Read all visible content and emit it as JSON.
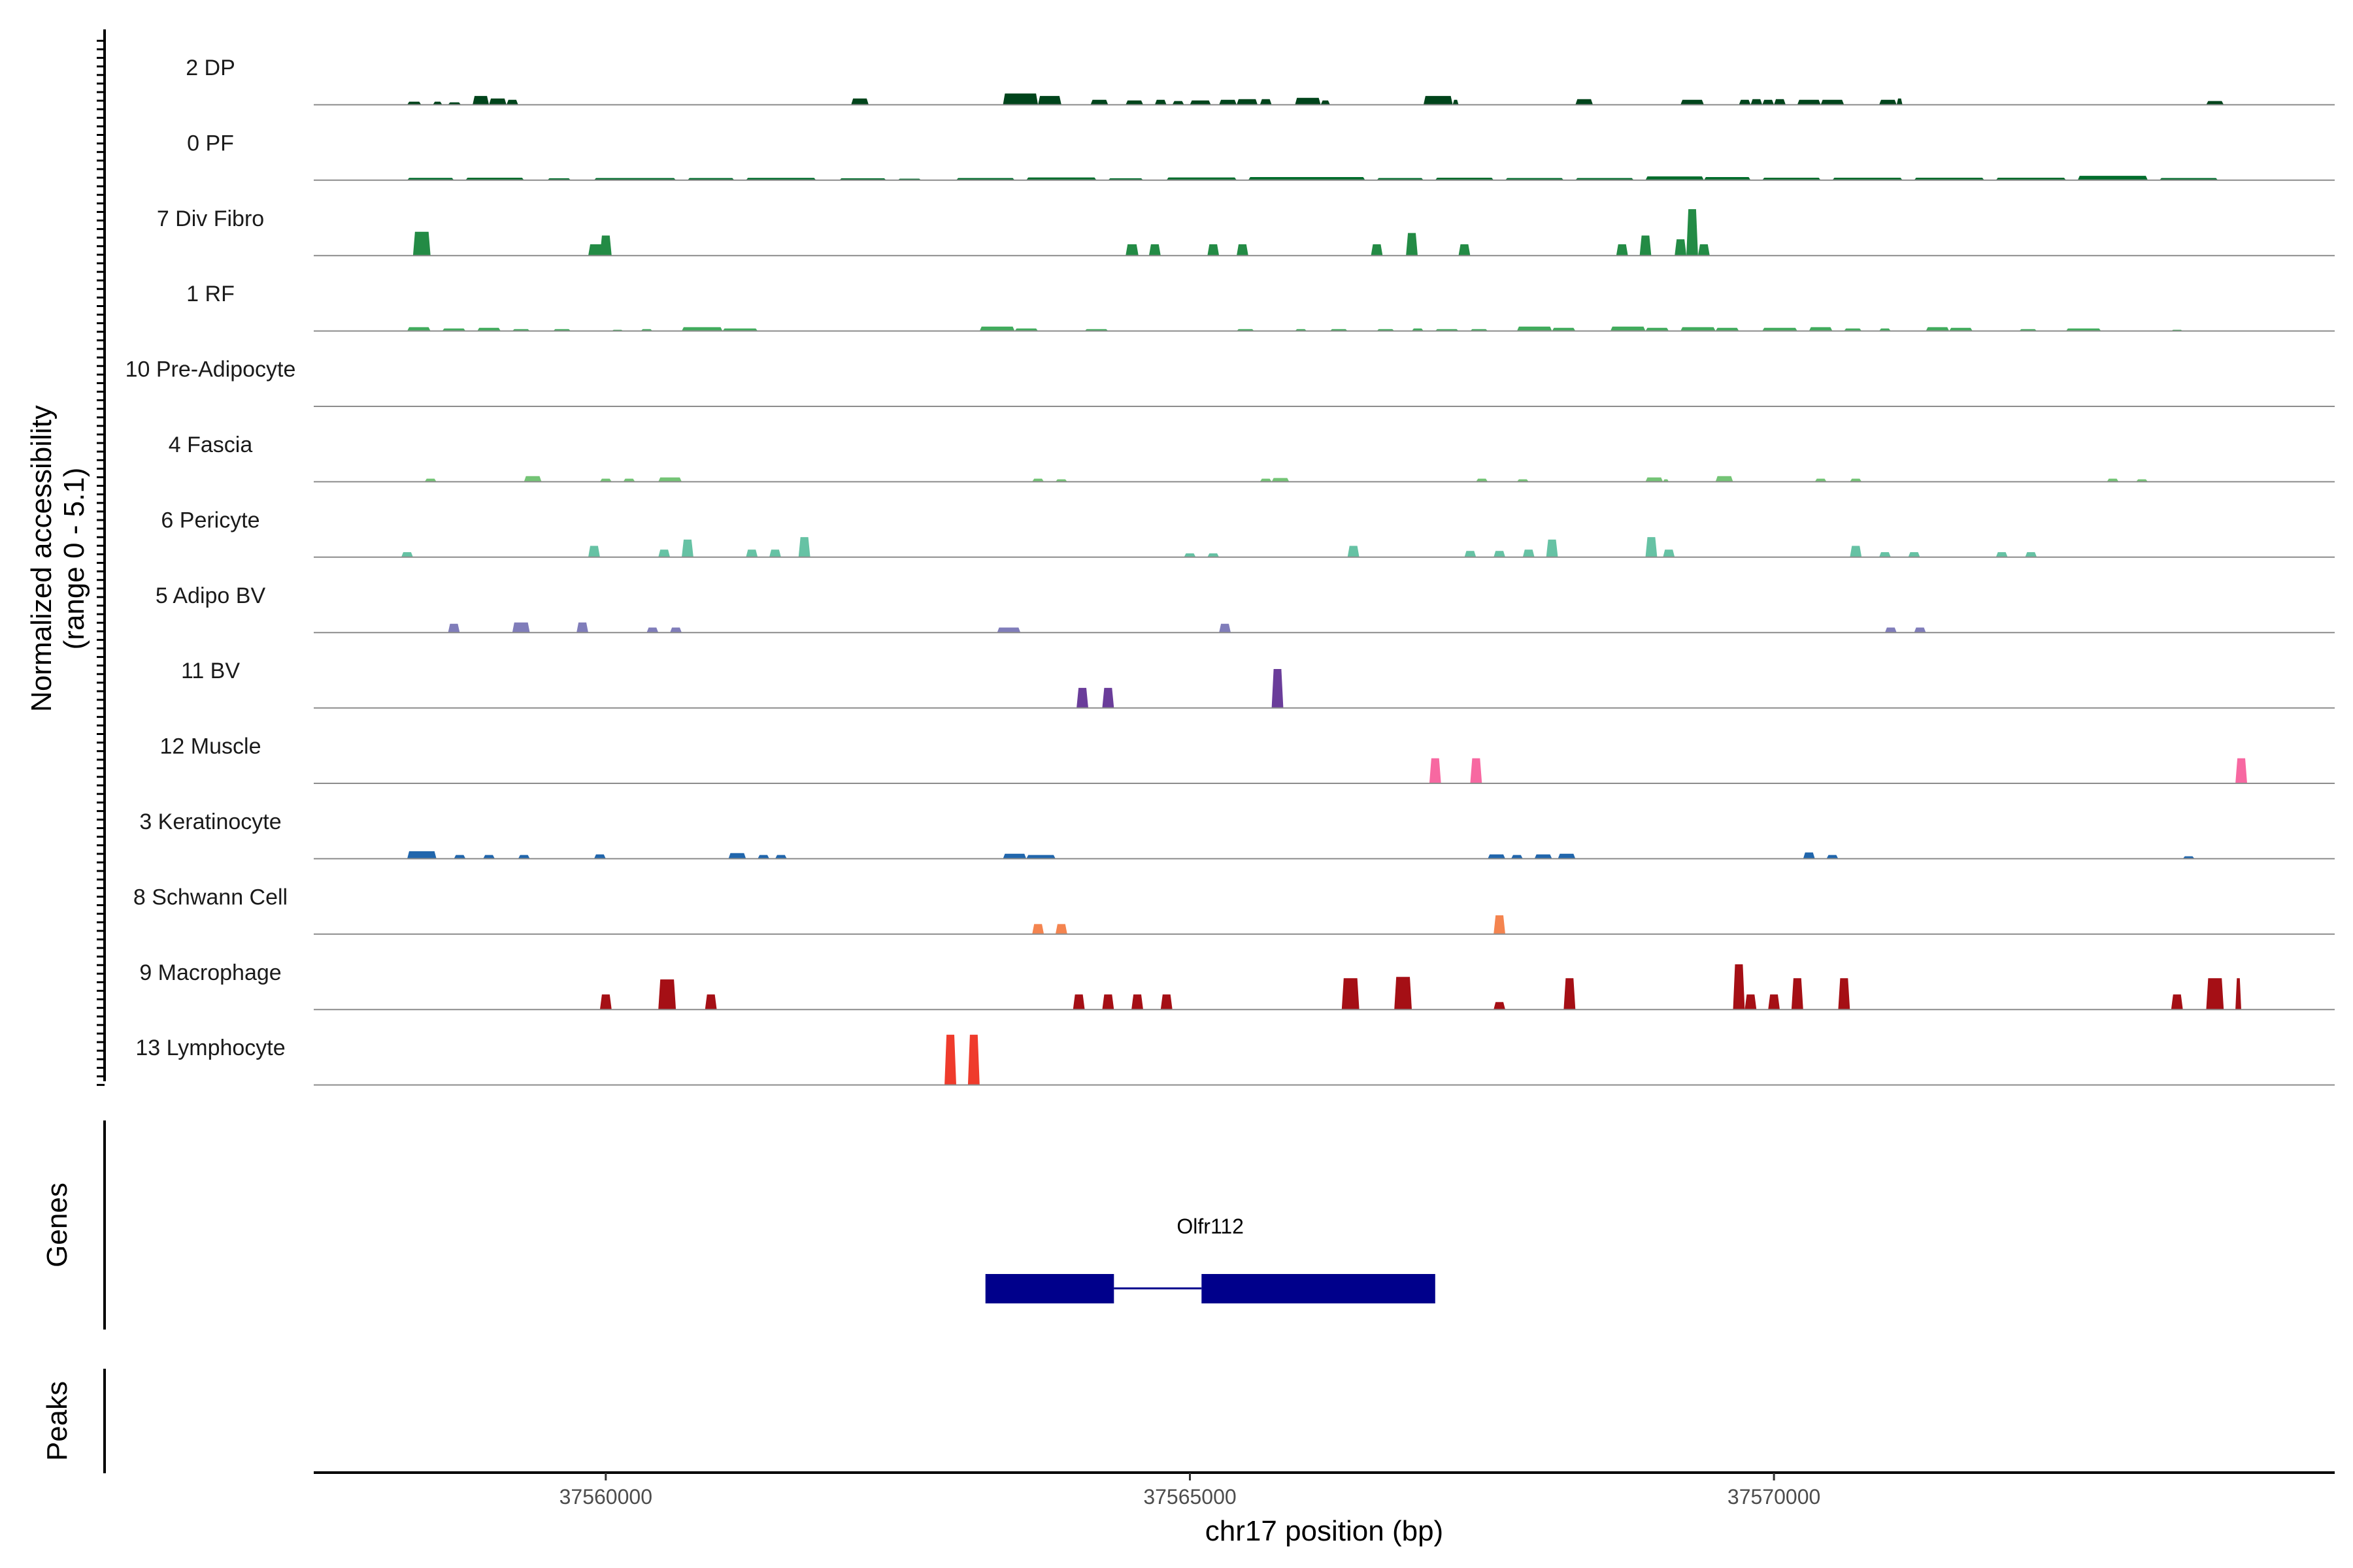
{
  "chart_data": {
    "type": "coverage",
    "region_start": 37557500,
    "region_end": 37574800,
    "y_axis_title_line1": "Normalized accessibility",
    "y_axis_title_line2": "(range 0 - 5.1)",
    "y_range": [
      0,
      5.1
    ],
    "x_axis_title": "chr17 position (bp)",
    "x_ticks": [
      {
        "value": 37560000,
        "label": "37560000"
      },
      {
        "value": 37565000,
        "label": "37565000"
      },
      {
        "value": 37570000,
        "label": "37570000"
      }
    ],
    "genes_panel_title": "Genes",
    "peaks_panel_title": "Peaks",
    "gene": {
      "name": "Olfr112",
      "color": "#00008B",
      "exons": [
        [
          37563250,
          37564350
        ],
        [
          37565100,
          37567100
        ]
      ],
      "intron": [
        37564350,
        37565100
      ]
    },
    "tracks": [
      {
        "label": "2 DP",
        "color": "#00441B",
        "peaks": [
          [
            37558300,
            37558420,
            0.25
          ],
          [
            37558520,
            37558600,
            0.25
          ],
          [
            37558650,
            37558760,
            0.2
          ],
          [
            37558860,
            37559000,
            0.7
          ],
          [
            37559000,
            37559150,
            0.5
          ],
          [
            37559150,
            37559250,
            0.4
          ],
          [
            37562100,
            37562250,
            0.5
          ],
          [
            37563400,
            37563700,
            0.9
          ],
          [
            37563700,
            37563900,
            0.7
          ],
          [
            37564150,
            37564300,
            0.4
          ],
          [
            37564450,
            37564600,
            0.35
          ],
          [
            37564700,
            37564800,
            0.4
          ],
          [
            37564850,
            37564950,
            0.3
          ],
          [
            37565000,
            37565180,
            0.35
          ],
          [
            37565250,
            37565400,
            0.4
          ],
          [
            37565400,
            37565580,
            0.45
          ],
          [
            37565600,
            37565700,
            0.45
          ],
          [
            37565900,
            37566120,
            0.55
          ],
          [
            37566120,
            37566200,
            0.35
          ],
          [
            37567000,
            37567250,
            0.7
          ],
          [
            37567250,
            37567300,
            0.4
          ],
          [
            37568300,
            37568450,
            0.45
          ],
          [
            37569200,
            37569400,
            0.4
          ],
          [
            37569700,
            37569800,
            0.4
          ],
          [
            37569800,
            37569900,
            0.45
          ],
          [
            37569900,
            37570000,
            0.4
          ],
          [
            37570000,
            37570100,
            0.45
          ],
          [
            37570200,
            37570400,
            0.4
          ],
          [
            37570400,
            37570600,
            0.4
          ],
          [
            37570900,
            37571050,
            0.4
          ],
          [
            37571050,
            37571100,
            0.5
          ],
          [
            37573700,
            37573850,
            0.3
          ]
        ]
      },
      {
        "label": "0 PF",
        "color": "#006D2C",
        "peaks": [
          [
            37558300,
            37558700,
            0.18
          ],
          [
            37558800,
            37559300,
            0.2
          ],
          [
            37559500,
            37559700,
            0.15
          ],
          [
            37559900,
            37560600,
            0.17
          ],
          [
            37560700,
            37561100,
            0.17
          ],
          [
            37561200,
            37561800,
            0.18
          ],
          [
            37562000,
            37562400,
            0.15
          ],
          [
            37562500,
            37562700,
            0.12
          ],
          [
            37563000,
            37563500,
            0.17
          ],
          [
            37563600,
            37564200,
            0.22
          ],
          [
            37564300,
            37564600,
            0.15
          ],
          [
            37564800,
            37565400,
            0.22
          ],
          [
            37565500,
            37566500,
            0.25
          ],
          [
            37566600,
            37567000,
            0.17
          ],
          [
            37567100,
            37567600,
            0.2
          ],
          [
            37567700,
            37568200,
            0.17
          ],
          [
            37568300,
            37568800,
            0.17
          ],
          [
            37568900,
            37569400,
            0.3
          ],
          [
            37569400,
            37569800,
            0.25
          ],
          [
            37569900,
            37570400,
            0.2
          ],
          [
            37570500,
            37571100,
            0.2
          ],
          [
            37571200,
            37571800,
            0.2
          ],
          [
            37571900,
            37572500,
            0.2
          ],
          [
            37572600,
            37573200,
            0.35
          ],
          [
            37573300,
            37573800,
            0.17
          ]
        ]
      },
      {
        "label": "7 Div Fibro",
        "color": "#238B45",
        "peaks": [
          [
            37558350,
            37558500,
            1.9
          ],
          [
            37559850,
            37560000,
            0.9
          ],
          [
            37559950,
            37560050,
            1.6
          ],
          [
            37564450,
            37564560,
            0.9
          ],
          [
            37564650,
            37564750,
            0.9
          ],
          [
            37565150,
            37565250,
            0.9
          ],
          [
            37565400,
            37565500,
            0.9
          ],
          [
            37566550,
            37566650,
            0.9
          ],
          [
            37566850,
            37566950,
            1.8
          ],
          [
            37567300,
            37567400,
            0.9
          ],
          [
            37568650,
            37568750,
            0.9
          ],
          [
            37568850,
            37568950,
            1.6
          ],
          [
            37569150,
            37569250,
            1.3
          ],
          [
            37569250,
            37569350,
            3.7
          ],
          [
            37569350,
            37569450,
            0.9
          ]
        ]
      },
      {
        "label": "1 RF",
        "color": "#41AB5D",
        "peaks": [
          [
            37558300,
            37558500,
            0.3
          ],
          [
            37558600,
            37558800,
            0.2
          ],
          [
            37558900,
            37559100,
            0.25
          ],
          [
            37559200,
            37559350,
            0.15
          ],
          [
            37559550,
            37559700,
            0.15
          ],
          [
            37560050,
            37560150,
            0.1
          ],
          [
            37560300,
            37560400,
            0.15
          ],
          [
            37560650,
            37561000,
            0.3
          ],
          [
            37561000,
            37561300,
            0.2
          ],
          [
            37563200,
            37563500,
            0.35
          ],
          [
            37563500,
            37563700,
            0.2
          ],
          [
            37564100,
            37564300,
            0.15
          ],
          [
            37565400,
            37565550,
            0.15
          ],
          [
            37565900,
            37566000,
            0.15
          ],
          [
            37566200,
            37566350,
            0.15
          ],
          [
            37566600,
            37566750,
            0.15
          ],
          [
            37566900,
            37567000,
            0.2
          ],
          [
            37567100,
            37567300,
            0.15
          ],
          [
            37567400,
            37567550,
            0.15
          ],
          [
            37567800,
            37568100,
            0.35
          ],
          [
            37568100,
            37568300,
            0.25
          ],
          [
            37568600,
            37568900,
            0.35
          ],
          [
            37568900,
            37569100,
            0.25
          ],
          [
            37569200,
            37569500,
            0.3
          ],
          [
            37569500,
            37569700,
            0.25
          ],
          [
            37569900,
            37570200,
            0.25
          ],
          [
            37570300,
            37570500,
            0.3
          ],
          [
            37570600,
            37570750,
            0.2
          ],
          [
            37570900,
            37571000,
            0.2
          ],
          [
            37571300,
            37571500,
            0.3
          ],
          [
            37571500,
            37571700,
            0.25
          ],
          [
            37572100,
            37572250,
            0.15
          ],
          [
            37572500,
            37572800,
            0.2
          ],
          [
            37573400,
            37573500,
            0.1
          ]
        ]
      },
      {
        "label": "10 Pre-Adipocyte",
        "color": "#74C476",
        "peaks": []
      },
      {
        "label": "4 Fascia",
        "color": "#74C476",
        "peaks": [
          [
            37558450,
            37558550,
            0.25
          ],
          [
            37559300,
            37559450,
            0.45
          ],
          [
            37559950,
            37560050,
            0.25
          ],
          [
            37560150,
            37560250,
            0.25
          ],
          [
            37560450,
            37560650,
            0.35
          ],
          [
            37563650,
            37563750,
            0.25
          ],
          [
            37563850,
            37563950,
            0.2
          ],
          [
            37565600,
            37565700,
            0.25
          ],
          [
            37565700,
            37565850,
            0.3
          ],
          [
            37567450,
            37567550,
            0.25
          ],
          [
            37567800,
            37567900,
            0.2
          ],
          [
            37568900,
            37569050,
            0.35
          ],
          [
            37569050,
            37569100,
            0.2
          ],
          [
            37569500,
            37569650,
            0.45
          ],
          [
            37570350,
            37570450,
            0.25
          ],
          [
            37570650,
            37570750,
            0.25
          ],
          [
            37572850,
            37572950,
            0.25
          ],
          [
            37573100,
            37573200,
            0.2
          ]
        ]
      },
      {
        "label": "6 Pericyte",
        "color": "#66C2A4",
        "peaks": [
          [
            37558250,
            37558350,
            0.4
          ],
          [
            37559850,
            37559950,
            0.9
          ],
          [
            37560450,
            37560550,
            0.6
          ],
          [
            37560650,
            37560750,
            1.4
          ],
          [
            37561200,
            37561300,
            0.6
          ],
          [
            37561400,
            37561500,
            0.6
          ],
          [
            37561650,
            37561750,
            1.6
          ],
          [
            37564950,
            37565050,
            0.3
          ],
          [
            37565150,
            37565250,
            0.3
          ],
          [
            37566350,
            37566450,
            0.9
          ],
          [
            37567350,
            37567450,
            0.5
          ],
          [
            37567600,
            37567700,
            0.5
          ],
          [
            37567850,
            37567950,
            0.6
          ],
          [
            37568050,
            37568150,
            1.4
          ],
          [
            37568900,
            37569000,
            1.6
          ],
          [
            37569050,
            37569150,
            0.6
          ],
          [
            37570650,
            37570750,
            0.9
          ],
          [
            37570900,
            37571000,
            0.4
          ],
          [
            37571150,
            37571250,
            0.4
          ],
          [
            37571900,
            37572000,
            0.4
          ],
          [
            37572150,
            37572250,
            0.4
          ]
        ]
      },
      {
        "label": "5 Adipo BV",
        "color": "#807DBA",
        "peaks": [
          [
            37558650,
            37558750,
            0.7
          ],
          [
            37559200,
            37559350,
            0.8
          ],
          [
            37559750,
            37559850,
            0.8
          ],
          [
            37560350,
            37560450,
            0.4
          ],
          [
            37560550,
            37560650,
            0.4
          ],
          [
            37563350,
            37563550,
            0.4
          ],
          [
            37565250,
            37565350,
            0.7
          ],
          [
            37570950,
            37571050,
            0.4
          ],
          [
            37571200,
            37571300,
            0.4
          ]
        ]
      },
      {
        "label": "11 BV",
        "color": "#6A3D9A",
        "peaks": [
          [
            37564030,
            37564130,
            1.6
          ],
          [
            37564250,
            37564350,
            1.6
          ],
          [
            37565700,
            37565800,
            3.1
          ]
        ]
      },
      {
        "label": "12 Muscle",
        "color": "#F768A1",
        "peaks": [
          [
            37567050,
            37567150,
            2.0
          ],
          [
            37567400,
            37567500,
            2.0
          ],
          [
            37573950,
            37574050,
            2.0
          ]
        ]
      },
      {
        "label": "3 Keratinocyte",
        "color": "#2166AC",
        "peaks": [
          [
            37558300,
            37558550,
            0.6
          ],
          [
            37558700,
            37558800,
            0.3
          ],
          [
            37558950,
            37559050,
            0.3
          ],
          [
            37559250,
            37559350,
            0.3
          ],
          [
            37559900,
            37560000,
            0.35
          ],
          [
            37561050,
            37561200,
            0.45
          ],
          [
            37561300,
            37561400,
            0.3
          ],
          [
            37561450,
            37561550,
            0.3
          ],
          [
            37563400,
            37563600,
            0.4
          ],
          [
            37563600,
            37563850,
            0.3
          ],
          [
            37567550,
            37567700,
            0.35
          ],
          [
            37567750,
            37567850,
            0.3
          ],
          [
            37567950,
            37568100,
            0.35
          ],
          [
            37568150,
            37568300,
            0.4
          ],
          [
            37570250,
            37570350,
            0.5
          ],
          [
            37570450,
            37570550,
            0.3
          ],
          [
            37573500,
            37573600,
            0.2
          ]
        ]
      },
      {
        "label": "8 Schwann Cell",
        "color": "#F4844F",
        "peaks": [
          [
            37563650,
            37563750,
            0.8
          ],
          [
            37563850,
            37563950,
            0.8
          ],
          [
            37567600,
            37567700,
            1.5
          ]
        ]
      },
      {
        "label": "9 Macrophage",
        "color": "#A50F15",
        "peaks": [
          [
            37559950,
            37560050,
            1.2
          ],
          [
            37560450,
            37560600,
            2.4
          ],
          [
            37560850,
            37560950,
            1.2
          ],
          [
            37564000,
            37564100,
            1.2
          ],
          [
            37564250,
            37564350,
            1.2
          ],
          [
            37564500,
            37564600,
            1.2
          ],
          [
            37564750,
            37564850,
            1.2
          ],
          [
            37566300,
            37566450,
            2.5
          ],
          [
            37566750,
            37566900,
            2.6
          ],
          [
            37567600,
            37567700,
            0.6
          ],
          [
            37568200,
            37568300,
            2.5
          ],
          [
            37569650,
            37569750,
            3.6
          ],
          [
            37569750,
            37569850,
            1.2
          ],
          [
            37569950,
            37570050,
            1.2
          ],
          [
            37570150,
            37570250,
            2.5
          ],
          [
            37570550,
            37570650,
            2.5
          ],
          [
            37573400,
            37573500,
            1.2
          ],
          [
            37573700,
            37573850,
            2.5
          ],
          [
            37573950,
            37574000,
            2.5
          ]
        ]
      },
      {
        "label": "13 Lymphocyte",
        "color": "#EF3B2C",
        "peaks": [
          [
            37562900,
            37563000,
            4.0
          ],
          [
            37563100,
            37563200,
            4.0
          ]
        ]
      }
    ]
  }
}
